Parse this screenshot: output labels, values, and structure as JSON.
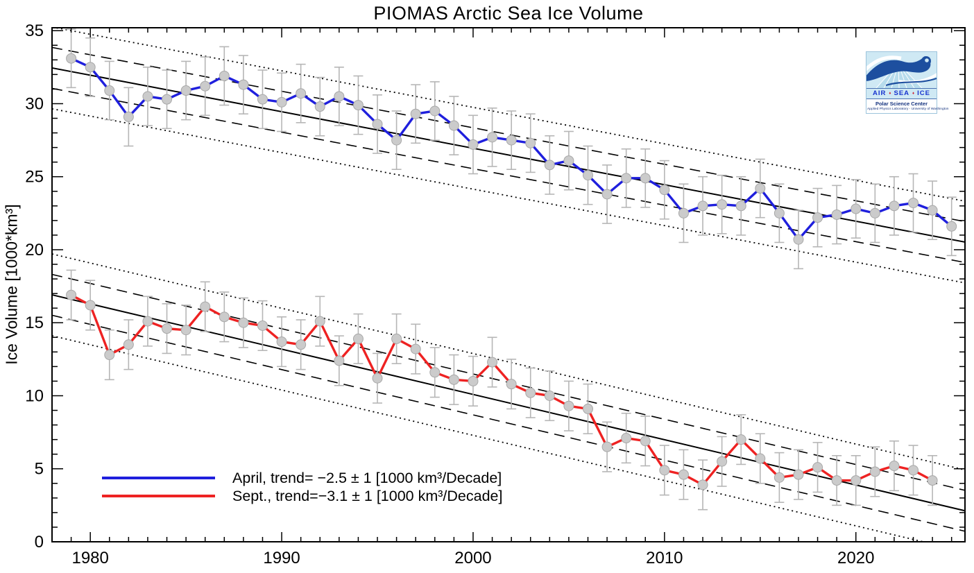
{
  "title": "PIOMAS Arctic Sea Ice Volume",
  "chart_data": {
    "type": "line",
    "title": "PIOMAS Arctic Sea Ice Volume",
    "xlabel": "",
    "ylabel": "Ice Volume [1000*km³]",
    "xlim": [
      1978,
      2025.7
    ],
    "ylim": [
      0,
      35.2
    ],
    "x_major_ticks": [
      1980,
      1990,
      2000,
      2010,
      2020
    ],
    "x_minor_step": 1,
    "y_major_ticks": [
      0,
      5,
      10,
      15,
      20,
      25,
      30,
      35
    ],
    "y_minor_step": 1,
    "grid": false,
    "legend_position": "bottom-left",
    "marker_color": "#cbcbcb",
    "marker_edge_color": "#a8a8a8",
    "error_bar_color": "#b6b6b6",
    "trend_line_color": "#000000",
    "series": [
      {
        "name": "April",
        "color": "#1f1fdd",
        "legend_label": "April, trend= −2.5 ± 1 [1000 km³/Decade]",
        "error_bar": 2.0,
        "trend": {
          "per_decade": -2.5,
          "uncertainty_per_decade": 1,
          "value_1979": 32.2,
          "slope_per_year": -0.25,
          "band_dashed": 1.4,
          "band_dotted": 2.8
        },
        "years": [
          1979,
          1980,
          1981,
          1982,
          1983,
          1984,
          1985,
          1986,
          1987,
          1988,
          1989,
          1990,
          1991,
          1992,
          1993,
          1994,
          1995,
          1996,
          1997,
          1998,
          1999,
          2000,
          2001,
          2002,
          2003,
          2004,
          2005,
          2006,
          2007,
          2008,
          2009,
          2010,
          2011,
          2012,
          2013,
          2014,
          2015,
          2016,
          2017,
          2018,
          2019,
          2020,
          2021,
          2022,
          2023,
          2024,
          2025
        ],
        "values": [
          33.1,
          32.5,
          30.9,
          29.1,
          30.5,
          30.3,
          30.9,
          31.2,
          31.9,
          31.3,
          30.3,
          30.1,
          30.7,
          29.8,
          30.5,
          29.9,
          28.6,
          27.5,
          29.3,
          29.5,
          28.5,
          27.2,
          27.7,
          27.5,
          27.3,
          25.8,
          26.1,
          25.1,
          23.8,
          24.9,
          24.9,
          24.1,
          22.5,
          23.0,
          23.1,
          23.0,
          24.2,
          22.5,
          20.7,
          22.2,
          22.4,
          22.8,
          22.5,
          23.0,
          23.2,
          22.7,
          21.6
        ]
      },
      {
        "name": "Sept",
        "color": "#ee2222",
        "legend_label": "Sept., trend=−3.1 ± 1 [1000 km³/Decade]",
        "error_bar": 1.7,
        "trend": {
          "per_decade": -3.1,
          "uncertainty_per_decade": 1,
          "value_1979": 16.6,
          "slope_per_year": -0.31,
          "band_dashed": 1.4,
          "band_dotted": 2.8
        },
        "years": [
          1979,
          1980,
          1981,
          1982,
          1983,
          1984,
          1985,
          1986,
          1987,
          1988,
          1989,
          1990,
          1991,
          1992,
          1993,
          1994,
          1995,
          1996,
          1997,
          1998,
          1999,
          2000,
          2001,
          2002,
          2003,
          2004,
          2005,
          2006,
          2007,
          2008,
          2009,
          2010,
          2011,
          2012,
          2013,
          2014,
          2015,
          2016,
          2017,
          2018,
          2019,
          2020,
          2021,
          2022,
          2023,
          2024
        ],
        "values": [
          16.9,
          16.2,
          12.8,
          13.5,
          15.1,
          14.6,
          14.5,
          16.1,
          15.4,
          15.0,
          14.8,
          13.7,
          13.5,
          15.1,
          12.4,
          13.9,
          11.2,
          13.9,
          13.2,
          11.6,
          11.1,
          11.0,
          12.3,
          10.8,
          10.2,
          10.0,
          9.3,
          9.1,
          6.5,
          7.1,
          6.9,
          4.9,
          4.6,
          3.9,
          5.5,
          7.0,
          5.7,
          4.4,
          4.6,
          5.1,
          4.2,
          4.2,
          4.8,
          5.2,
          4.9,
          4.2
        ]
      }
    ]
  },
  "logo": {
    "word1": "AIR",
    "word2": "SEA",
    "word3": "ICE",
    "separator": "♦",
    "center_name": "Polar Science Center",
    "affiliation": "Applied Physics Laboratory - University of Washington"
  }
}
